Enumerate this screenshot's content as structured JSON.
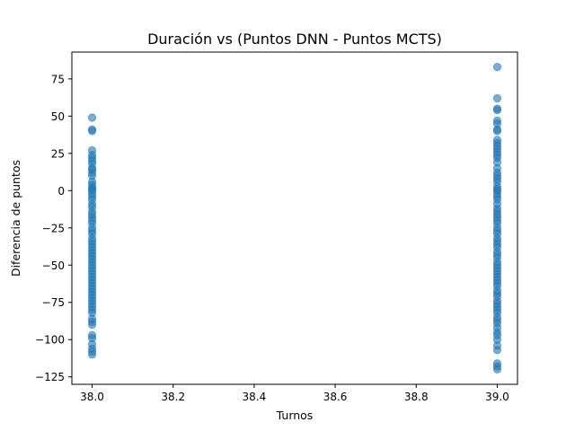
{
  "chart_data": {
    "type": "scatter",
    "title": "Duración vs (Puntos DNN - Puntos MCTS)",
    "xlabel": "Turnos",
    "ylabel": "Diferencia de puntos",
    "xlim": [
      37.95,
      39.05
    ],
    "ylim": [
      -130,
      93
    ],
    "xticks": [
      38.0,
      38.2,
      38.4,
      38.6,
      38.8,
      39.0
    ],
    "xtick_labels": [
      "38.0",
      "38.2",
      "38.4",
      "38.6",
      "38.8",
      "39.0"
    ],
    "yticks": [
      75,
      50,
      25,
      0,
      -25,
      -50,
      -75,
      -100,
      -125
    ],
    "ytick_labels": [
      "75",
      "50",
      "25",
      "0",
      "−25",
      "−50",
      "−75",
      "−100",
      "−125"
    ],
    "grid": false,
    "marker_color": "#1f77b4",
    "marker_alpha": 0.6,
    "series": [
      {
        "x": 38.0,
        "values": [
          49,
          41,
          40,
          27,
          24,
          22,
          20,
          18,
          15,
          14,
          12,
          10,
          6,
          4,
          2,
          1,
          0,
          -2,
          -4,
          -6,
          -9,
          -11,
          -14,
          -16,
          -18,
          -20,
          -22,
          -25,
          -27,
          -29,
          -32,
          -34,
          -36,
          -38,
          -40,
          -42,
          -44,
          -46,
          -48,
          -50,
          -52,
          -54,
          -56,
          -58,
          -60,
          -62,
          -64,
          -66,
          -68,
          -70,
          -72,
          -74,
          -76,
          -78,
          -80,
          -82,
          -86,
          -88,
          -90,
          -97,
          -99,
          -103,
          -106,
          -108,
          -110
        ]
      },
      {
        "x": 39.0,
        "values": [
          83,
          62,
          55,
          54,
          47,
          45,
          41,
          40,
          34,
          32,
          30,
          28,
          26,
          24,
          22,
          19,
          15,
          12,
          10,
          8,
          6,
          3,
          1,
          0,
          -2,
          -4,
          -6,
          -9,
          -12,
          -14,
          -16,
          -18,
          -20,
          -22,
          -25,
          -27,
          -29,
          -32,
          -34,
          -36,
          -38,
          -41,
          -43,
          -45,
          -48,
          -50,
          -52,
          -54,
          -56,
          -58,
          -60,
          -62,
          -64,
          -67,
          -69,
          -71,
          -74,
          -76,
          -78,
          -80,
          -82,
          -85,
          -87,
          -89,
          -92,
          -95,
          -97,
          -100,
          -104,
          -107,
          -116,
          -118,
          -120
        ]
      }
    ]
  }
}
